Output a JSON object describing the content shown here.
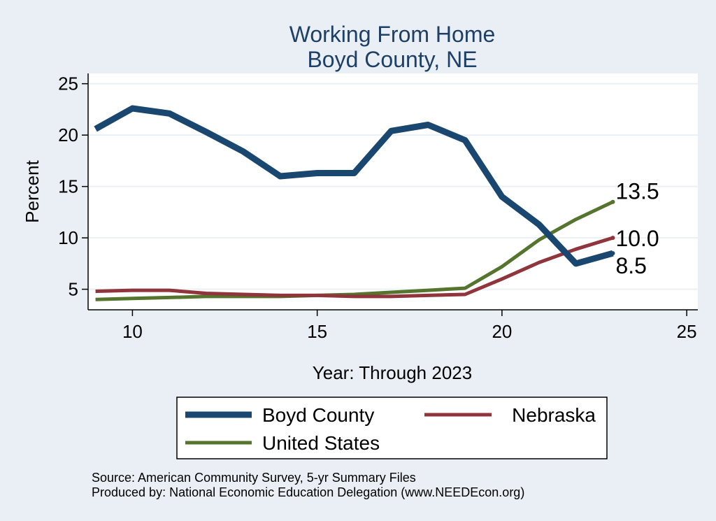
{
  "chart_data": {
    "type": "line",
    "title": "Working From Home",
    "subtitle": "Boyd County, NE",
    "xlabel": "Year: Through 2023",
    "ylabel": "Percent",
    "xlim": [
      8.8,
      25.3
    ],
    "ylim": [
      3.0,
      26.0
    ],
    "xticks": [
      10,
      15,
      20,
      25
    ],
    "yticks": [
      5,
      10,
      15,
      20,
      25
    ],
    "grid": true,
    "legend_position": "bottom",
    "x": [
      9,
      10,
      11,
      12,
      13,
      14,
      15,
      16,
      17,
      18,
      19,
      20,
      21,
      22,
      23
    ],
    "series": [
      {
        "name": "Boyd County",
        "color": "#1a476f",
        "values": [
          20.6,
          22.6,
          22.1,
          20.3,
          18.4,
          16.0,
          16.3,
          16.3,
          20.4,
          21.0,
          19.5,
          14.0,
          11.3,
          7.5,
          8.5
        ]
      },
      {
        "name": "Nebraska",
        "color": "#90353b",
        "values": [
          4.8,
          4.9,
          4.9,
          4.6,
          4.5,
          4.4,
          4.4,
          4.3,
          4.3,
          4.4,
          4.5,
          6.0,
          7.6,
          8.9,
          10.0
        ]
      },
      {
        "name": "United States",
        "color": "#55752f",
        "values": [
          4.0,
          4.1,
          4.2,
          4.3,
          4.3,
          4.3,
          4.4,
          4.5,
          4.7,
          4.9,
          5.1,
          7.2,
          9.8,
          11.8,
          13.5
        ]
      }
    ],
    "end_labels": [
      {
        "series": "United States",
        "text": "13.5"
      },
      {
        "series": "Nebraska",
        "text": "10.0"
      },
      {
        "series": "Boyd County",
        "text": "8.5"
      }
    ]
  },
  "footer": {
    "source": "Source: American Community Survey, 5-yr Summary Files",
    "produced": "Produced by: National Economic Education Delegation (www.NEEDEcon.org)"
  }
}
